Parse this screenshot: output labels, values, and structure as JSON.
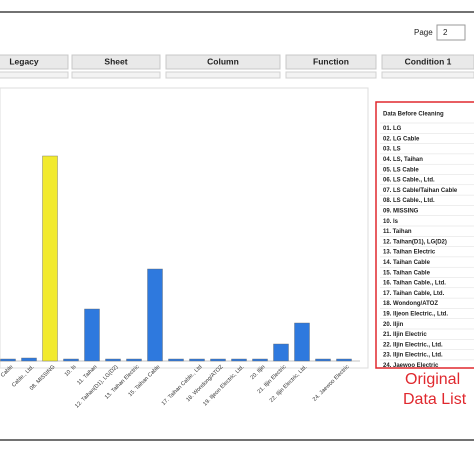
{
  "toolbar": {
    "page_label": "Page",
    "page_value": "2"
  },
  "columns": [
    "Legacy",
    "Sheet",
    "Column",
    "Function",
    "Condition 1"
  ],
  "chart_data": {
    "type": "bar",
    "categories": [
      "Cable",
      "Cable., Ltd.",
      "08. MISSING",
      "10. ls",
      "11. Taihan",
      "12. Taihan(D1), LG(D2)",
      "13. Taihan Electric",
      "15. Taihan Cable",
      null,
      "17. Taihan Cable., Ltd",
      "18. Wondong/ATOZ",
      "19. Iljeon Electric, Ltd.",
      "20. Iljin",
      "21. Iljin Electric",
      "22. Iljin Electric, Ltd.",
      null,
      "24. Jaewoo Electric"
    ],
    "values": [
      2,
      3,
      205,
      2,
      52,
      2,
      2,
      92,
      2,
      2,
      2,
      2,
      2,
      17,
      38,
      2,
      2
    ],
    "colors": [
      "#2e79de",
      "#2e79de",
      "#f2ea2e",
      "#2e79de",
      "#2e79de",
      "#2e79de",
      "#2e79de",
      "#2e79de",
      "#2e79de",
      "#2e79de",
      "#2e79de",
      "#2e79de",
      "#2e79de",
      "#2e79de",
      "#2e79de",
      "#2e79de",
      "#2e79de"
    ]
  },
  "data_list": {
    "title": "Data Before Cleaning",
    "items": [
      "01. LG",
      "02. LG Cable",
      "03. LS",
      "04. LS, Taihan",
      "05. LS Cable",
      "06. LS Cable., Ltd.",
      "07. LS Cable/Taihan Cable",
      "08. LS Cable., Ltd.",
      "09. MISSING",
      "10. ls",
      "11. Taihan",
      "12. Taihan(D1), LG(D2)",
      "13. Taihan Electric",
      "14. Taihan Cable",
      "15. Taihan Cable",
      "16. Taihan Cable., Ltd.",
      "17. Taihan Cable, Ltd.",
      "18. Wondong/ATOZ",
      "19. Iljeon Electric., Ltd.",
      "20. Iljin",
      "21. Iljin Electric",
      "22. Iljin Electric., Ltd.",
      "23. Iljin Electric., Ltd.",
      "24. Jaewoo Electric"
    ]
  },
  "annotation": [
    "Original",
    "Data List"
  ]
}
